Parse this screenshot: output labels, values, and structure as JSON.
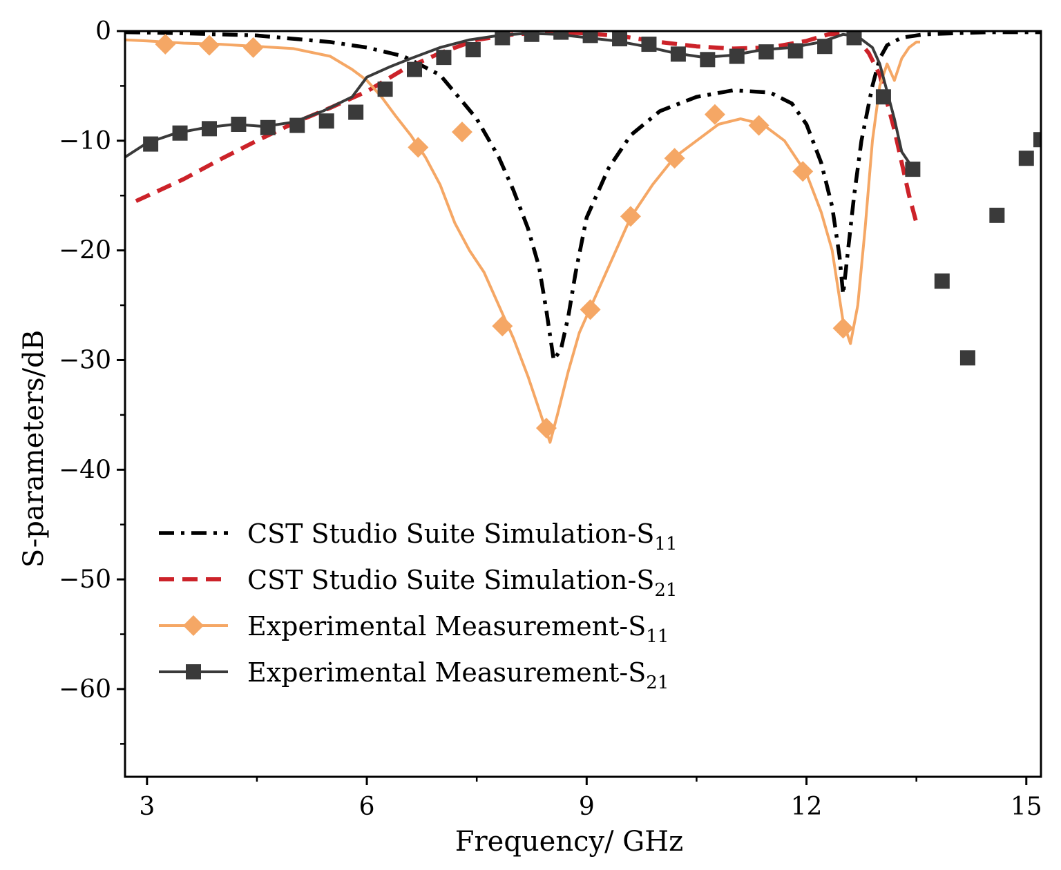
{
  "chart_data": {
    "type": "line",
    "title": "",
    "xlabel": "Frequency/ GHz",
    "ylabel": "S-parameters/dB",
    "xlim": [
      2.7,
      15.2
    ],
    "ylim": [
      -68,
      0
    ],
    "xticks": [
      3,
      6,
      9,
      12,
      15
    ],
    "xtick_labels": [
      "3",
      "6",
      "9",
      "12",
      "15"
    ],
    "yticks": [
      0,
      -10,
      -20,
      -30,
      -40,
      -50,
      -60
    ],
    "ytick_labels": [
      "0",
      "−10",
      "−20",
      "−30",
      "−40",
      "−50",
      "−60"
    ],
    "grid": false,
    "legend_position": "lower-left",
    "series": [
      {
        "name": "sim_s11",
        "legend_main": "CST Studio Suite Simulation-S",
        "legend_sub": "11",
        "color": "#000000",
        "style": "dash-dot",
        "marker": "none",
        "x": [
          2.7,
          3.5,
          4.5,
          5.5,
          6.0,
          6.5,
          7.0,
          7.5,
          7.8,
          8.0,
          8.2,
          8.35,
          8.45,
          8.55,
          8.65,
          8.75,
          8.85,
          9.0,
          9.3,
          9.6,
          10.0,
          10.5,
          11.0,
          11.5,
          11.8,
          12.0,
          12.2,
          12.35,
          12.45,
          12.5,
          12.55,
          12.65,
          12.75,
          12.9,
          13.0,
          13.1,
          13.3,
          13.6,
          14.0,
          14.5,
          15.0,
          15.2
        ],
        "y": [
          -0.1,
          -0.2,
          -0.4,
          -1.0,
          -1.5,
          -2.3,
          -4.0,
          -8.0,
          -11.5,
          -14.5,
          -18.0,
          -21.5,
          -25.5,
          -30.0,
          -29.0,
          -26.0,
          -22.0,
          -17.0,
          -12.5,
          -9.5,
          -7.3,
          -6.0,
          -5.4,
          -5.6,
          -6.6,
          -8.5,
          -12.0,
          -16.0,
          -20.5,
          -24.0,
          -21.0,
          -15.0,
          -10.0,
          -5.0,
          -2.5,
          -1.3,
          -0.6,
          -0.3,
          -0.2,
          -0.1,
          -0.1,
          -0.1
        ]
      },
      {
        "name": "sim_s21",
        "legend_main": "CST Studio Suite Simulation-S",
        "legend_sub": "21",
        "color": "#cc2229",
        "style": "dashed",
        "marker": "none",
        "x": [
          2.85,
          3.5,
          4.0,
          4.5,
          5.0,
          5.5,
          6.0,
          6.5,
          7.0,
          7.5,
          8.0,
          8.5,
          9.0,
          9.5,
          10.0,
          10.5,
          11.0,
          11.5,
          12.0,
          12.3,
          12.5,
          12.7,
          12.85,
          13.0,
          13.1,
          13.2,
          13.3,
          13.4,
          13.5
        ],
        "y": [
          -15.5,
          -13.5,
          -11.7,
          -10.0,
          -8.4,
          -7.0,
          -5.5,
          -3.5,
          -2.0,
          -0.8,
          -0.3,
          -0.1,
          -0.2,
          -0.5,
          -1.0,
          -1.4,
          -1.6,
          -1.5,
          -0.9,
          -0.3,
          -0.2,
          -0.8,
          -2.0,
          -4.0,
          -6.5,
          -9.0,
          -12.0,
          -15.0,
          -17.5
        ]
      },
      {
        "name": "meas_s11",
        "legend_main": "Experimental Measurement-S",
        "legend_sub": "11",
        "color": "#f5a765",
        "style": "solid",
        "marker": "diamond",
        "x": [
          2.7,
          3.0,
          3.5,
          4.0,
          4.5,
          5.0,
          5.5,
          5.8,
          6.0,
          6.2,
          6.4,
          6.6,
          6.8,
          7.0,
          7.2,
          7.4,
          7.6,
          7.8,
          8.0,
          8.2,
          8.35,
          8.5,
          8.6,
          8.75,
          8.9,
          9.1,
          9.3,
          9.6,
          9.9,
          10.2,
          10.5,
          10.8,
          11.1,
          11.4,
          11.7,
          12.0,
          12.2,
          12.35,
          12.5,
          12.6,
          12.7,
          12.8,
          12.9,
          13.0,
          13.1,
          13.2,
          13.3,
          13.4,
          13.5,
          13.55
        ],
        "y": [
          -0.8,
          -0.9,
          -1.1,
          -1.2,
          -1.4,
          -1.6,
          -2.3,
          -3.5,
          -4.5,
          -6.0,
          -7.8,
          -9.5,
          -11.5,
          -14.0,
          -17.5,
          -20.0,
          -22.0,
          -25.0,
          -28.0,
          -31.5,
          -34.5,
          -37.5,
          -35.0,
          -31.0,
          -27.5,
          -24.5,
          -21.5,
          -17.0,
          -14.0,
          -11.5,
          -10.0,
          -8.5,
          -8.0,
          -8.5,
          -10.0,
          -13.0,
          -16.5,
          -20.0,
          -26.5,
          -28.5,
          -25.0,
          -18.0,
          -10.0,
          -5.0,
          -3.0,
          -4.5,
          -2.5,
          -1.5,
          -1.0,
          -1.0
        ],
        "marker_x": [
          3.25,
          3.85,
          4.45,
          6.7,
          7.3,
          7.85,
          8.45,
          9.05,
          9.6,
          10.2,
          10.75,
          11.35,
          11.95,
          12.5
        ],
        "marker_y": [
          -1.2,
          -1.3,
          -1.5,
          -10.6,
          -9.2,
          -26.9,
          -36.2,
          -25.4,
          -16.9,
          -11.6,
          -7.6,
          -8.6,
          -12.8,
          -27.1
        ]
      },
      {
        "name": "meas_s21",
        "legend_main": "Experimental Measurement-S",
        "legend_sub": "21",
        "color": "#3a3a3a",
        "style": "solid",
        "marker": "square",
        "x": [
          2.7,
          3.0,
          3.4,
          3.8,
          4.2,
          4.6,
          5.0,
          5.4,
          5.8,
          6.0,
          6.3,
          6.6,
          7.0,
          7.4,
          7.8,
          8.2,
          8.6,
          9.0,
          9.4,
          9.8,
          10.2,
          10.6,
          11.0,
          11.4,
          11.8,
          12.2,
          12.5,
          12.7,
          12.9,
          13.0,
          13.1,
          13.2,
          13.3,
          13.4,
          13.5
        ],
        "y": [
          -11.5,
          -10.2,
          -9.3,
          -8.8,
          -8.5,
          -8.7,
          -8.3,
          -7.3,
          -6.0,
          -4.2,
          -3.3,
          -2.5,
          -1.5,
          -0.8,
          -0.4,
          -0.2,
          -0.3,
          -0.6,
          -0.9,
          -1.4,
          -2.0,
          -2.4,
          -2.2,
          -1.7,
          -1.5,
          -1.0,
          -0.3,
          -0.5,
          -1.5,
          -3.0,
          -5.5,
          -8.0,
          -11.0,
          -12.0,
          -12.5
        ],
        "marker_x": [
          3.05,
          3.45,
          3.85,
          4.25,
          4.65,
          5.05,
          5.45,
          5.85,
          6.25,
          6.65,
          7.05,
          7.45,
          7.85,
          8.25,
          8.65,
          9.05,
          9.45,
          9.85,
          10.25,
          10.65,
          11.05,
          11.45,
          11.85,
          12.25,
          12.65,
          13.05,
          13.45,
          13.85,
          14.2,
          14.6,
          15.0,
          15.2
        ],
        "marker_y": [
          -10.3,
          -9.3,
          -8.9,
          -8.5,
          -8.8,
          -8.6,
          -8.2,
          -7.4,
          -5.3,
          -3.5,
          -2.4,
          -1.7,
          -0.6,
          -0.3,
          -0.1,
          -0.4,
          -0.7,
          -1.2,
          -2.1,
          -2.6,
          -2.3,
          -1.9,
          -1.8,
          -1.4,
          -0.6,
          -6.0,
          -12.6,
          -22.8,
          -29.8,
          -16.8,
          -11.6,
          -9.9
        ]
      }
    ]
  }
}
